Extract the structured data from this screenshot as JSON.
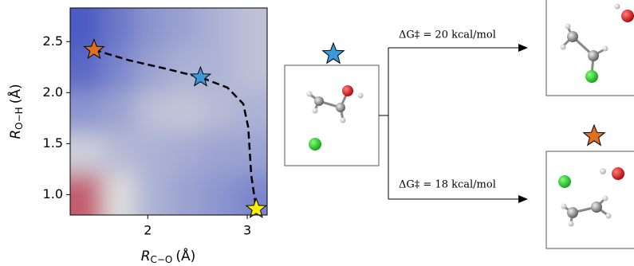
{
  "chart_data": {
    "type": "contour",
    "x_label": {
      "symbol": "R",
      "subscript": "C−O",
      "unit": "(Å)"
    },
    "y_label": {
      "symbol": "R",
      "subscript": "O−H",
      "unit": "(Å)"
    },
    "xlim": [
      1.22,
      3.2
    ],
    "ylim": [
      0.8,
      2.83
    ],
    "xticks": [
      2,
      3
    ],
    "yticks": [
      {
        "value": 1,
        "label": "1.0"
      },
      {
        "value": 1.5,
        "label": "1.5"
      },
      {
        "value": 2,
        "label": "2.0"
      },
      {
        "value": 2.5,
        "label": "2.5"
      }
    ],
    "z": [
      [
        0.05,
        0.15,
        0.25,
        0.3,
        0.35,
        0.4
      ],
      [
        0.1,
        0.2,
        0.3,
        0.35,
        0.35,
        0.4
      ],
      [
        0.25,
        0.3,
        0.4,
        0.42,
        0.38,
        0.35
      ],
      [
        0.45,
        0.38,
        0.35,
        0.33,
        0.3,
        0.3
      ],
      [
        0.8,
        0.5,
        0.35,
        0.3,
        0.25,
        0.2
      ]
    ],
    "colormap": [
      "#3b4cc0",
      "#dddddd",
      "#b40426"
    ],
    "path": {
      "x": [
        1.46,
        1.8,
        2.2,
        2.53,
        2.8,
        2.96,
        3.01,
        3.04,
        3.09
      ],
      "y": [
        2.42,
        2.32,
        2.23,
        2.15,
        2.05,
        1.89,
        1.66,
        1.19,
        0.86
      ],
      "color": "#000000"
    },
    "points": {
      "x": [
        1.46,
        2.53,
        3.09
      ],
      "y": [
        2.42,
        2.15,
        0.86
      ],
      "colors": [
        "#e0701c",
        "#3a9ad9",
        "#ffee00"
      ]
    }
  },
  "diagram": {
    "labels": [
      "ΔG‡ = 20 kcal/mol",
      "ΔG‡ = 18 kcal/mol"
    ],
    "label_color": "#ff0000"
  }
}
